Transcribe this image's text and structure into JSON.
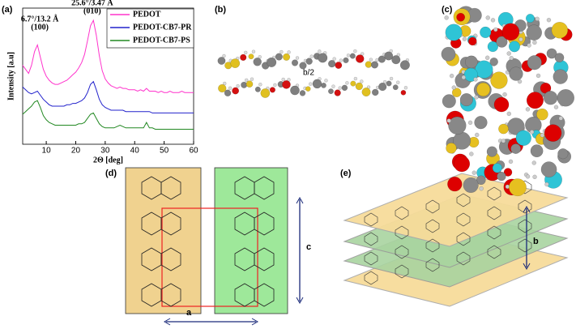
{
  "chart_data": {
    "type": "line",
    "panel_label": "(a)",
    "x_label": "2Θ [deg]",
    "y_label": "Intensity [a.u]",
    "annotations": [
      [
        "6.7°/13.2 Å",
        "(100)"
      ],
      [
        "25.6°/3.47 Å",
        "(010)"
      ]
    ],
    "xlim": [
      2,
      60
    ],
    "xticks": [
      10,
      20,
      30,
      40,
      50,
      60
    ],
    "ylim": [
      0,
      100
    ],
    "grid": false,
    "x": [
      2,
      3,
      4,
      5,
      6,
      7,
      8,
      9,
      10,
      11,
      12,
      13,
      14,
      15,
      16,
      17,
      18,
      19,
      20,
      21,
      22,
      23,
      24,
      25,
      26,
      27,
      28,
      29,
      30,
      31,
      32,
      33,
      34,
      35,
      36,
      37,
      38,
      39,
      40,
      41,
      42,
      43,
      44,
      45,
      46,
      47,
      48,
      49,
      50,
      51,
      52,
      53,
      54,
      55,
      56,
      57,
      58,
      59,
      60
    ],
    "series": [
      {
        "name": "PEDOT",
        "color": "#ff33cc",
        "values": [
          58,
          55,
          52,
          58,
          68,
          73,
          64,
          55,
          50,
          47,
          45,
          44,
          44,
          45,
          46,
          47,
          49,
          51,
          53,
          56,
          60,
          66,
          76,
          87,
          91,
          80,
          65,
          54,
          48,
          45,
          43,
          42,
          41,
          42,
          41,
          41,
          40,
          40,
          40,
          39,
          40,
          39,
          41,
          39,
          39,
          39,
          38,
          39,
          38,
          38,
          39,
          38,
          38,
          38,
          39,
          38,
          38,
          38,
          38
        ]
      },
      {
        "name": "PEDOT-CB7-PR",
        "color": "#2222cc",
        "values": [
          42,
          40,
          38,
          37,
          38,
          39,
          36,
          33,
          31,
          29,
          28,
          28,
          28,
          28,
          28,
          29,
          29,
          30,
          30,
          31,
          32,
          34,
          38,
          44,
          46,
          40,
          33,
          29,
          27,
          26,
          25,
          25,
          25,
          25,
          25,
          24,
          24,
          24,
          24,
          24,
          24,
          24,
          24,
          24,
          23,
          23,
          23,
          23,
          23,
          23,
          23,
          23,
          23,
          23,
          23,
          23,
          23,
          23,
          23
        ]
      },
      {
        "name": "PEDOT-CB7-PS",
        "color": "#228822",
        "values": [
          22,
          24,
          26,
          28,
          31,
          32,
          27,
          21,
          18,
          16,
          15,
          14,
          14,
          14,
          14,
          14,
          14,
          14,
          14,
          15,
          15,
          16,
          19,
          22,
          23,
          19,
          15,
          13,
          12,
          12,
          12,
          12,
          13,
          14,
          13,
          12,
          12,
          12,
          12,
          12,
          12,
          12,
          16,
          12,
          12,
          11,
          11,
          11,
          11,
          11,
          11,
          11,
          11,
          11,
          11,
          11,
          11,
          11,
          11
        ]
      }
    ]
  },
  "panels": {
    "b": {
      "label": "(b)",
      "annotation": "b/2"
    },
    "c": {
      "label": "(c)"
    },
    "d": {
      "label": "(d)",
      "axis_labels": [
        "c",
        "a"
      ]
    },
    "e": {
      "label": "(e)",
      "axis_label": "b"
    }
  }
}
